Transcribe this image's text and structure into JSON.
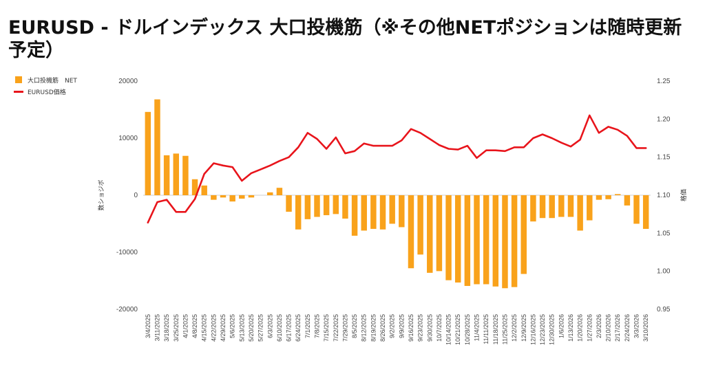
{
  "title": "EURUSD - ドルインデックス 大口投機筋（※その他NETポジションは随時更新予定）",
  "chart_data": {
    "type": "bar+line",
    "categories": [
      "3/4/2025",
      "3/11/2025",
      "3/18/2025",
      "3/25/2025",
      "4/1/2025",
      "4/8/2025",
      "4/15/2025",
      "4/22/2025",
      "4/29/2025",
      "5/6/2025",
      "5/13/2025",
      "5/20/2025",
      "5/27/2025",
      "6/3/2025",
      "6/10/2025",
      "6/17/2025",
      "6/24/2025",
      "7/1/2025",
      "7/8/2025",
      "7/15/2025",
      "7/22/2025",
      "7/29/2025",
      "8/5/2025",
      "8/12/2025",
      "8/19/2025",
      "8/26/2025",
      "9/2/2025",
      "9/9/2025",
      "9/16/2025",
      "9/23/2025",
      "9/30/2025",
      "10/7/2025",
      "10/14/2025",
      "10/21/2025",
      "10/28/2025",
      "11/4/2025",
      "11/11/2025",
      "11/18/2025",
      "11/25/2025",
      "12/2/2025",
      "12/9/2025",
      "12/16/2025",
      "12/23/2025",
      "12/30/2025",
      "1/6/2026",
      "1/13/2026",
      "1/20/2026",
      "1/27/2026",
      "2/3/2026",
      "2/10/2026",
      "2/17/2026",
      "2/24/2026",
      "3/3/2026",
      "3/10/2026"
    ],
    "series": [
      {
        "name": "大口投機筋　NET",
        "axis": "left",
        "kind": "bar",
        "color": "#f9a21b",
        "values": [
          14600,
          16800,
          7000,
          7300,
          6900,
          2800,
          1700,
          -800,
          -400,
          -1100,
          -600,
          -400,
          0,
          500,
          1300,
          -2900,
          -6000,
          -4200,
          -3800,
          -3500,
          -3300,
          -4100,
          -7100,
          -6200,
          -5900,
          -6000,
          -5000,
          -5600,
          -12800,
          -10400,
          -13600,
          -13300,
          -14900,
          -15300,
          -15900,
          -15600,
          -15600,
          -16000,
          -16300,
          -16100,
          -13800,
          -4600,
          -4000,
          -4000,
          -3800,
          -3800,
          -6200,
          -4400,
          -800,
          -700,
          200,
          -1800,
          -5000,
          -5900
        ]
      },
      {
        "name": "EURUSD価格",
        "axis": "right",
        "kind": "line",
        "color": "#e8141b",
        "values": [
          1.064,
          1.091,
          1.094,
          1.078,
          1.078,
          1.095,
          1.128,
          1.142,
          1.139,
          1.137,
          1.119,
          1.129,
          1.134,
          1.139,
          1.145,
          1.15,
          1.163,
          1.182,
          1.174,
          1.161,
          1.176,
          1.155,
          1.158,
          1.168,
          1.165,
          1.165,
          1.165,
          1.172,
          1.187,
          1.182,
          1.174,
          1.166,
          1.161,
          1.16,
          1.165,
          1.149,
          1.159,
          1.159,
          1.158,
          1.163,
          1.163,
          1.175,
          1.18,
          1.175,
          1.169,
          1.164,
          1.173,
          1.205,
          1.182,
          1.19,
          1.186,
          1.178,
          1.162,
          1.162
        ]
      }
    ],
    "left_axis": {
      "label": "数ショジボ",
      "min": -20000,
      "max": 20000,
      "ticks": [
        20000,
        10000,
        0,
        -10000,
        -20000
      ]
    },
    "right_axis": {
      "label": "格価",
      "min": 0.95,
      "max": 1.25,
      "ticks": [
        "1.25",
        "1.20",
        "1.15",
        "1.10",
        "1.05",
        "1.00",
        "0.95"
      ]
    },
    "legend_position": "top-left",
    "grid": false
  }
}
